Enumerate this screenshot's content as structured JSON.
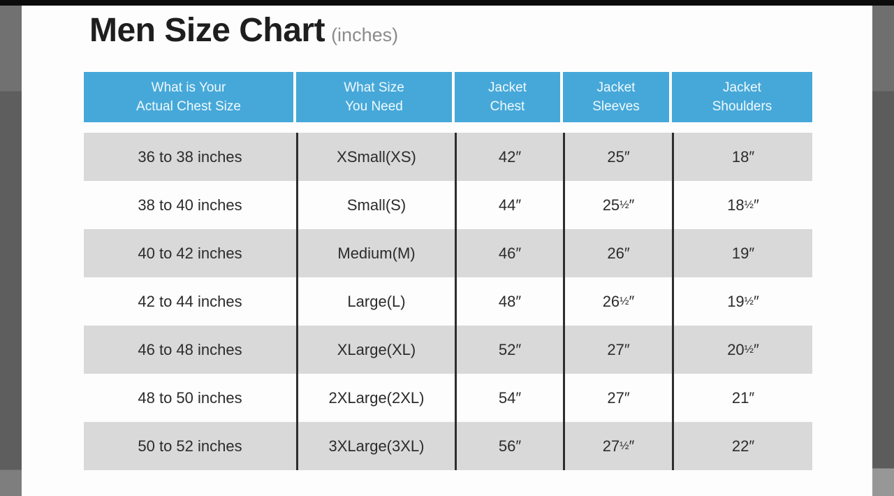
{
  "page": {
    "title": "Men Size Chart",
    "title_suffix": "(inches)"
  },
  "colors": {
    "header_blue": "#46a8d9",
    "header_text": "#f0f9fd",
    "row_gray": "#d9d9d9",
    "row_white": "#fdfdfd",
    "divider_line": "#2e2e2e",
    "letterbox_gray": "#5e5e5e",
    "top_strip_black": "#0c0c0c",
    "title_black": "#1e1e1e",
    "title_suffix_gray": "#8b8b8b"
  },
  "table": {
    "headers": [
      [
        "What is Your",
        "Actual Chest Size"
      ],
      [
        "What Size",
        "You Need"
      ],
      [
        "Jacket",
        "Chest"
      ],
      [
        "Jacket",
        "Sleeves"
      ],
      [
        "Jacket",
        "Shoulders"
      ]
    ],
    "rows": [
      [
        "36 to 38 inches",
        "XSmall(XS)",
        "42″",
        "25″",
        "18″"
      ],
      [
        "38 to 40 inches",
        "Small(S)",
        "44″",
        "25½″",
        "18½″"
      ],
      [
        "40 to 42 inches",
        "Medium(M)",
        "46″",
        "26″",
        "19″"
      ],
      [
        "42 to 44 inches",
        "Large(L)",
        "48″",
        "26½″",
        "19½″"
      ],
      [
        "46 to 48 inches",
        "XLarge(XL)",
        "52″",
        "27″",
        "20½″"
      ],
      [
        "48 to 50 inches",
        "2XLarge(2XL)",
        "54″",
        "27″",
        "21″"
      ],
      [
        "50 to 52 inches",
        "3XLarge(3XL)",
        "56″",
        "27½″",
        "22″"
      ]
    ]
  }
}
